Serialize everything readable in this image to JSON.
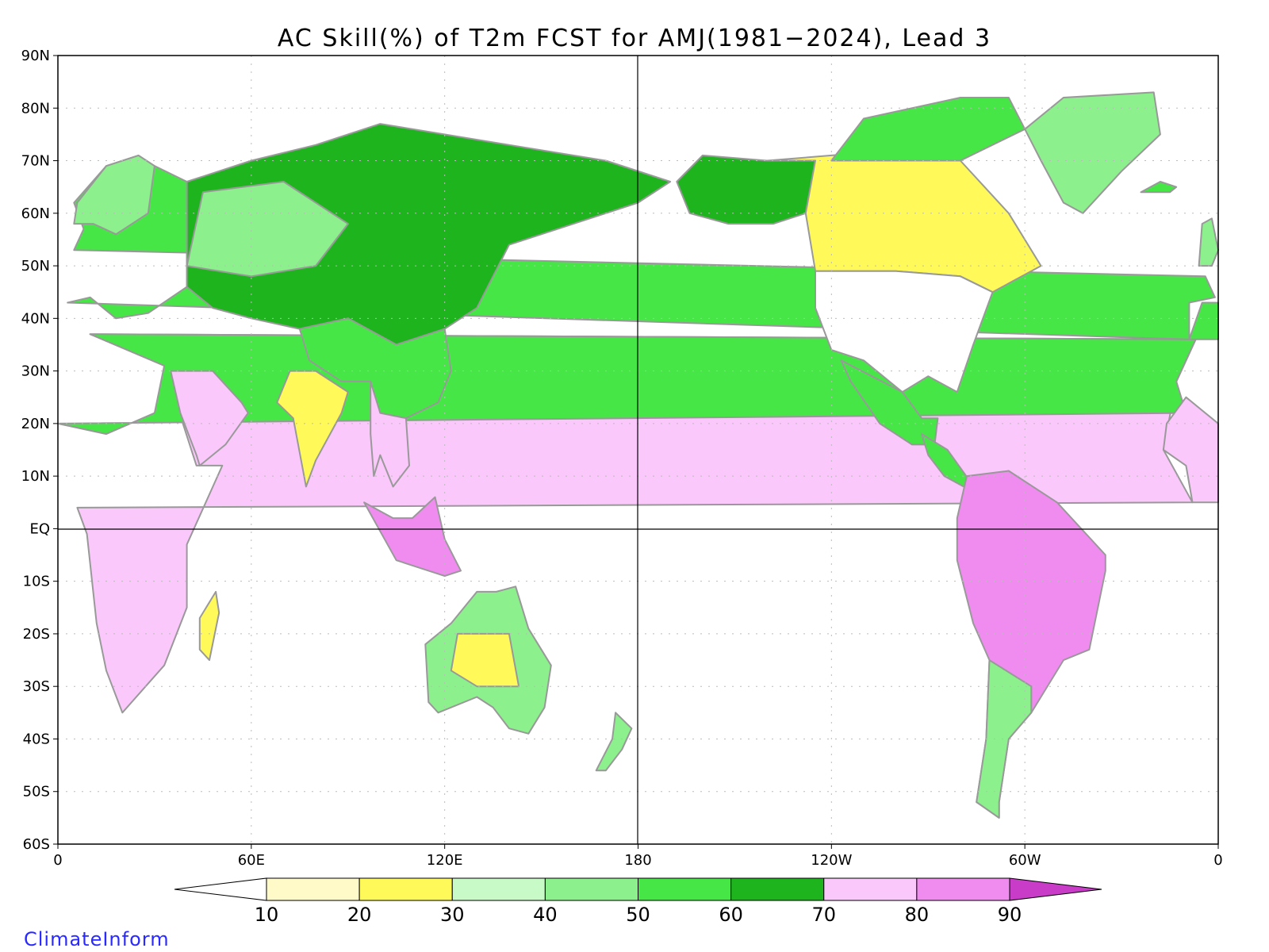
{
  "title": "AC Skill(%) of T2m FCST for AMJ(1981−2024), Lead 3",
  "lat_labels": [
    "90N",
    "80N",
    "70N",
    "60N",
    "50N",
    "40N",
    "30N",
    "20N",
    "10N",
    "EQ",
    "10S",
    "20S",
    "30S",
    "40S",
    "50S",
    "60S"
  ],
  "lon_labels": [
    "0",
    "60E",
    "120E",
    "180",
    "120W",
    "60W",
    "0"
  ],
  "colorbar": {
    "labels": [
      "10",
      "20",
      "30",
      "40",
      "50",
      "60",
      "70",
      "80",
      "90"
    ],
    "colors": [
      "#ffffff",
      "#fffac8",
      "#fffa5a",
      "#c8fac8",
      "#8cf08c",
      "#46e646",
      "#1eb41e",
      "#fac8fa",
      "#f08cf0",
      "#c83cc8"
    ]
  },
  "colors": {
    "land_outline": "#999999",
    "grid": "#bbbbbb",
    "border": "#000000",
    "brand": "#2a2aff"
  },
  "brand": "ClimateInform"
}
